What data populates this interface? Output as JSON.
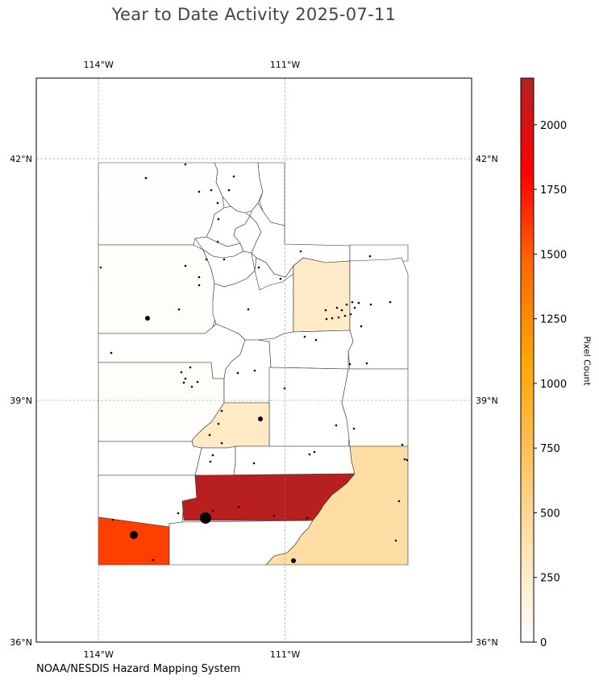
{
  "title": "Year to Date Activity 2025-07-11",
  "credit": "NOAA/NESDIS Hazard Mapping System",
  "colorbar": {
    "label": "Pixel Count",
    "min": 0,
    "max": 2180,
    "ticks": [
      0,
      250,
      500,
      750,
      1000,
      1250,
      1500,
      1750,
      2000
    ],
    "colors": [
      "#ffffff",
      "#ffe4b5",
      "#ffc15c",
      "#ffa500",
      "#ff6a00",
      "#ff0000",
      "#b22222"
    ]
  },
  "map": {
    "extent": {
      "lon_min": -115.0,
      "lon_max": -108.0,
      "lat_min": 36.0,
      "lat_max": 43.0
    },
    "lon_ticks": [
      {
        "value": -114,
        "label": "114°W"
      },
      {
        "value": -111,
        "label": "111°W"
      }
    ],
    "lat_ticks": [
      {
        "value": 42,
        "label": "42°N"
      },
      {
        "value": 39,
        "label": "39°N"
      },
      {
        "value": 36,
        "label": "36°N"
      }
    ],
    "gridlines": true,
    "counties": [
      {
        "id": "box-elder",
        "count": 15
      },
      {
        "id": "cache",
        "count": 5
      },
      {
        "id": "rich",
        "count": 0
      },
      {
        "id": "weber",
        "count": 0
      },
      {
        "id": "morgan",
        "count": 0
      },
      {
        "id": "davis",
        "count": 0
      },
      {
        "id": "summit",
        "count": 0
      },
      {
        "id": "daggett",
        "count": 0
      },
      {
        "id": "salt-lake",
        "count": 0
      },
      {
        "id": "tooele",
        "count": 30
      },
      {
        "id": "utah",
        "count": 0
      },
      {
        "id": "wasatch",
        "count": 0
      },
      {
        "id": "duchesne",
        "count": 270
      },
      {
        "id": "uintah",
        "count": 5
      },
      {
        "id": "juab",
        "count": 5
      },
      {
        "id": "millard",
        "count": 25
      },
      {
        "id": "sanpete",
        "count": 0
      },
      {
        "id": "carbon",
        "count": 0
      },
      {
        "id": "emery",
        "count": 5
      },
      {
        "id": "grand",
        "count": 5
      },
      {
        "id": "sevier",
        "count": 280
      },
      {
        "id": "beaver",
        "count": 0
      },
      {
        "id": "piute",
        "count": 0
      },
      {
        "id": "wayne",
        "count": 5
      },
      {
        "id": "iron",
        "count": 0
      },
      {
        "id": "garfield",
        "count": 2150
      },
      {
        "id": "san-juan",
        "count": 430
      },
      {
        "id": "washington",
        "count": 1600
      },
      {
        "id": "kane",
        "count": 0
      }
    ]
  }
}
